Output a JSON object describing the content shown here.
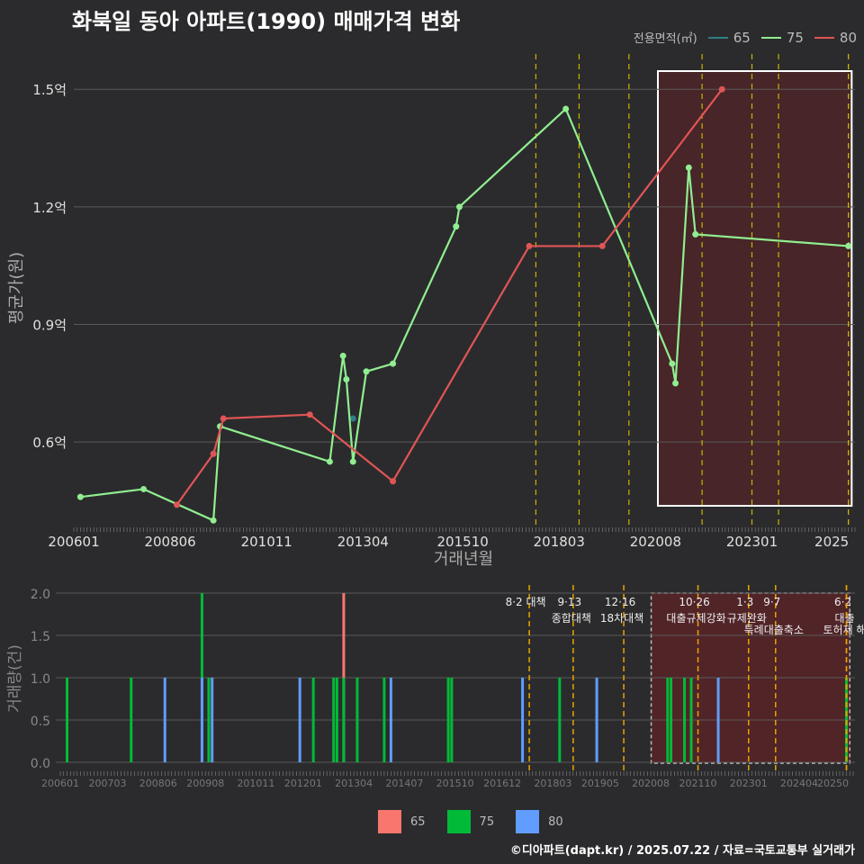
{
  "title": "화북일 동아 아파트(1990) 매매가격 변화",
  "footer": "©디아파트(dapt.kr) / 2025.07.22 / 자료=국토교통부 실거래가",
  "legend": {
    "title": "전용면적(㎡)",
    "items": [
      {
        "label": "65",
        "line": "#2f7f86",
        "bar": "#f8766d"
      },
      {
        "label": "75",
        "line": "#90ee90",
        "bar": "#00ba38"
      },
      {
        "label": "80",
        "line": "#e05555",
        "bar": "#619cff"
      }
    ]
  },
  "chart_data": [
    {
      "type": "line",
      "xlabel": "거래년월",
      "ylabel": "평균가(원)",
      "x_ticks": [
        "200601",
        "200806",
        "201011",
        "201304",
        "201510",
        "201803",
        "202008",
        "202301",
        "2025"
      ],
      "y_ticks": [
        "0.6억",
        "0.9억",
        "1.2억",
        "1.5억"
      ],
      "ylim": [
        0.38,
        1.59
      ],
      "series": [
        {
          "name": "65",
          "color": "#2f7f86",
          "points": [
            [
              "2013-01",
              0.66
            ]
          ]
        },
        {
          "name": "75",
          "color": "#90ee90",
          "points": [
            [
              "2006-03",
              0.46
            ],
            [
              "2007-10",
              0.48
            ],
            [
              "2009-07",
              0.4
            ],
            [
              "2009-09",
              0.64
            ],
            [
              "2012-06",
              0.55
            ],
            [
              "2012-10",
              0.82
            ],
            [
              "2012-11",
              0.76
            ],
            [
              "2013-01",
              0.55
            ],
            [
              "2013-05",
              0.78
            ],
            [
              "2014-01",
              0.8
            ],
            [
              "2015-08",
              1.15
            ],
            [
              "2015-09",
              1.2
            ],
            [
              "2018-05",
              1.45
            ],
            [
              "2021-01",
              0.8
            ],
            [
              "2021-02",
              0.75
            ],
            [
              "2021-06",
              1.3
            ],
            [
              "2021-08",
              1.13
            ],
            [
              "2025-06",
              1.1
            ]
          ]
        },
        {
          "name": "80",
          "color": "#e05555",
          "points": [
            [
              "2008-08",
              0.44
            ],
            [
              "2009-07",
              0.57
            ],
            [
              "2009-10",
              0.66
            ],
            [
              "2011-12",
              0.67
            ],
            [
              "2014-01",
              0.5
            ],
            [
              "2017-06",
              1.1
            ],
            [
              "2019-04",
              1.1
            ],
            [
              "2022-04",
              1.5
            ]
          ]
        }
      ]
    },
    {
      "type": "bar",
      "ylabel": "거래량(건)",
      "x_ticks": [
        "200601",
        "200703",
        "200806",
        "200908",
        "201011",
        "201201",
        "201304",
        "201407",
        "201510",
        "201612",
        "201803",
        "201905",
        "202008",
        "202110",
        "202301",
        "202404",
        "20250"
      ],
      "y_ticks": [
        "0.0",
        "0.5",
        "1.0",
        "1.5",
        "2.0"
      ],
      "ylim": [
        -0.1,
        2.1
      ],
      "bars": [
        {
          "date": "2006-03",
          "series": "75",
          "value": 1
        },
        {
          "date": "2007-10",
          "series": "75",
          "value": 1
        },
        {
          "date": "2008-08",
          "series": "80",
          "value": 1
        },
        {
          "date": "2009-07",
          "series": "75",
          "value": 2
        },
        {
          "date": "2009-07",
          "series": "80",
          "value": 1
        },
        {
          "date": "2009-09",
          "series": "75",
          "value": 1
        },
        {
          "date": "2009-10",
          "series": "80",
          "value": 1
        },
        {
          "date": "2011-12",
          "series": "80",
          "value": 1
        },
        {
          "date": "2012-04",
          "series": "75",
          "value": 1
        },
        {
          "date": "2012-10",
          "series": "75",
          "value": 1
        },
        {
          "date": "2012-11",
          "series": "75",
          "value": 1
        },
        {
          "date": "2013-01",
          "series": "65",
          "value": 2
        },
        {
          "date": "2013-01",
          "series": "75",
          "value": 1
        },
        {
          "date": "2013-05",
          "series": "75",
          "value": 1
        },
        {
          "date": "2014-01",
          "series": "75",
          "value": 1
        },
        {
          "date": "2014-03",
          "series": "80",
          "value": 1
        },
        {
          "date": "2015-08",
          "series": "75",
          "value": 1
        },
        {
          "date": "2015-09",
          "series": "75",
          "value": 1
        },
        {
          "date": "2017-06",
          "series": "80",
          "value": 1
        },
        {
          "date": "2018-05",
          "series": "75",
          "value": 1
        },
        {
          "date": "2019-04",
          "series": "80",
          "value": 1
        },
        {
          "date": "2021-01",
          "series": "75",
          "value": 1
        },
        {
          "date": "2021-02",
          "series": "75",
          "value": 1
        },
        {
          "date": "2021-06",
          "series": "75",
          "value": 1
        },
        {
          "date": "2021-08",
          "series": "75",
          "value": 1
        },
        {
          "date": "2022-04",
          "series": "80",
          "value": 1
        },
        {
          "date": "2025-06",
          "series": "75",
          "value": 1
        }
      ]
    }
  ],
  "events": [
    {
      "date": "2017-08",
      "label": "8·2 대책",
      "line2": ""
    },
    {
      "date": "2018-09",
      "label": "9·13",
      "line2": "종합대책"
    },
    {
      "date": "2019-12",
      "label": "12·16",
      "line2": "18차대책"
    },
    {
      "date": "2021-10",
      "label": "10·26",
      "line2": "대출규제강화"
    },
    {
      "date": "2023-01",
      "label": "1·3",
      "line2": "규제완화"
    },
    {
      "date": "2023-09",
      "label": "9·7",
      "line2": "특례대출축소"
    },
    {
      "date": "2025-06",
      "label": "6·2",
      "line2": "대출"
    },
    {
      "date": "2025-06",
      "label": "",
      "line2": "토허제 해"
    }
  ],
  "highlight": {
    "start": "2020-06",
    "end": "2025-07"
  }
}
